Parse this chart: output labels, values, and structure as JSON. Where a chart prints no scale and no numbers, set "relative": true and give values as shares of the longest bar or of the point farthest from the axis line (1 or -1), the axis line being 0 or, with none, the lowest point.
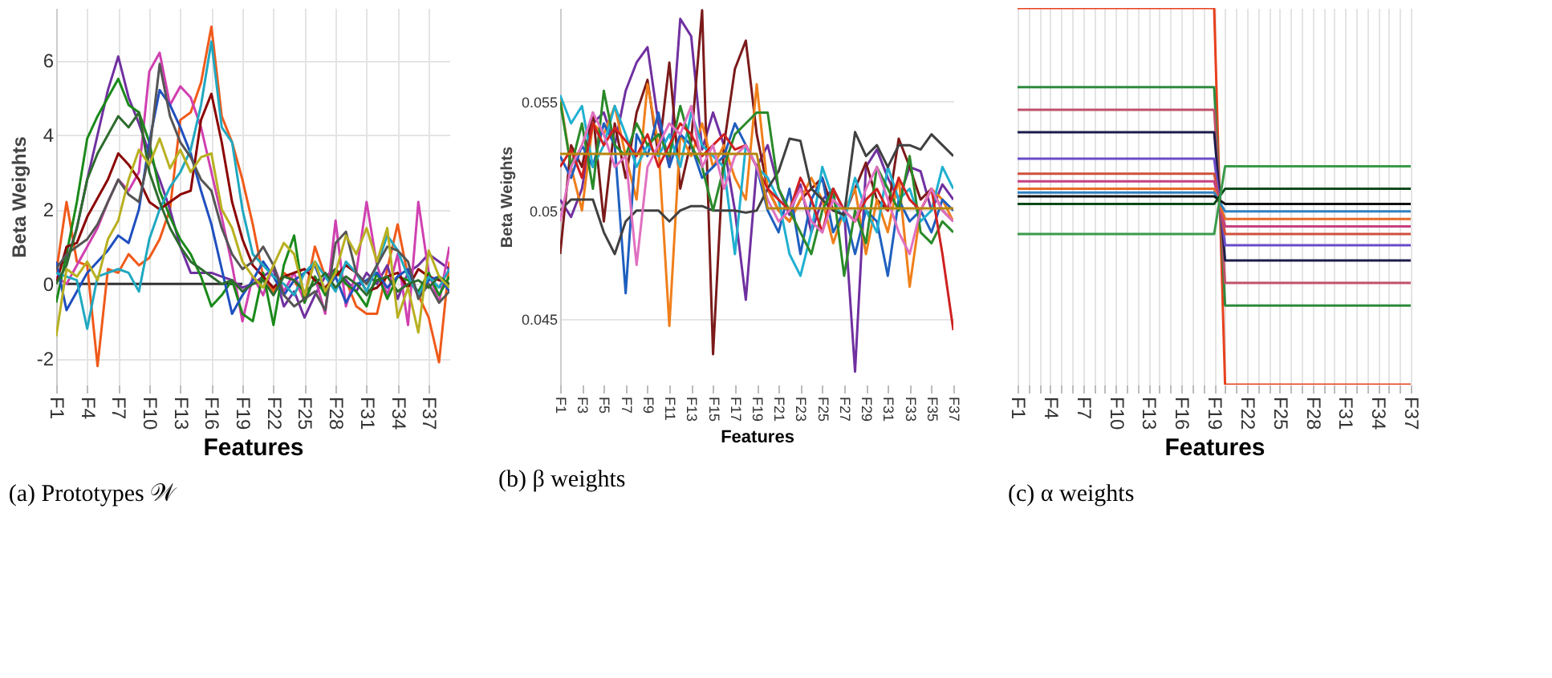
{
  "chart_data": [
    {
      "type": "line",
      "title": "(a) Prototypes 𝒲",
      "xlabel": "Features",
      "ylabel": "Beta Weights",
      "grid": true,
      "categories": [
        "F1",
        null,
        null,
        "F4",
        null,
        null,
        "F7",
        null,
        null,
        "F10",
        null,
        null,
        "F13",
        null,
        null,
        "F16",
        null,
        null,
        "F19",
        null,
        null,
        "F22",
        null,
        null,
        "F25",
        null,
        null,
        "F28",
        null,
        null,
        "F31",
        null,
        null,
        "F34",
        null,
        null,
        "F37",
        null,
        null
      ],
      "ylim": [
        -2.7,
        7.4
      ],
      "yticks": [
        -2,
        0,
        2,
        4,
        6
      ],
      "series": [
        {
          "color": "#333333",
          "values": [
            null,
            0,
            0,
            0,
            0,
            0,
            0,
            0,
            0,
            0,
            0,
            0,
            0,
            0,
            0,
            0,
            0,
            0,
            0,
            null,
            null,
            null,
            null,
            null,
            null,
            null,
            null,
            null,
            null,
            null,
            null,
            null,
            null,
            null,
            null,
            null,
            null,
            null,
            null
          ]
        },
        {
          "color": "#f05a1a",
          "values": [
            0.3,
            2.2,
            0.6,
            0.5,
            -2.2,
            0.4,
            0.3,
            0.8,
            0.5,
            0.7,
            1.2,
            2.0,
            4.4,
            4.6,
            5.4,
            6.9,
            4.5,
            3.8,
            2.8,
            1.6,
            0.2,
            -0.2,
            0.3,
            0.1,
            -0.4,
            1.0,
            0.2,
            0.3,
            0.1,
            -0.6,
            -0.8,
            -0.8,
            0.4,
            1.6,
            0.2,
            -0.3,
            -0.9,
            -2.1,
            0.6
          ]
        },
        {
          "color": "#7030a0",
          "values": [
            0.5,
            0.6,
            1.5,
            2.8,
            4.0,
            5.2,
            6.1,
            5.0,
            4.3,
            3.5,
            2.8,
            2.0,
            1.0,
            0.3,
            0.3,
            0.3,
            0.2,
            0.1,
            -0.1,
            0.0,
            0.2,
            0.4,
            -0.6,
            -0.2,
            -0.9,
            -0.3,
            0.2,
            0.4,
            0.1,
            -0.2,
            0.3,
            0.0,
            0.5,
            -0.4,
            0.3,
            0.5,
            0.8,
            0.6,
            0.4
          ]
        },
        {
          "color": "#d040b0",
          "values": [
            0.2,
            0.0,
            0.5,
            1.0,
            1.5,
            2.2,
            2.8,
            2.5,
            3.0,
            5.7,
            6.2,
            4.8,
            5.3,
            5.0,
            4.2,
            3.0,
            1.8,
            0.5,
            -1.0,
            0.2,
            -0.3,
            0.5,
            -0.2,
            0.3,
            -0.5,
            0.2,
            -0.8,
            1.7,
            -0.6,
            0.3,
            2.2,
            0.5,
            -0.3,
            0.8,
            -1.1,
            2.2,
            0.3,
            -0.5,
            1.0
          ]
        },
        {
          "color": "#1a8a1a",
          "values": [
            -0.5,
            0.8,
            2.2,
            3.9,
            4.5,
            5.0,
            5.5,
            4.8,
            4.6,
            3.8,
            2.5,
            1.8,
            1.2,
            0.8,
            0.2,
            -0.6,
            -0.3,
            0.1,
            -0.8,
            -1.0,
            0.3,
            -1.1,
            0.5,
            1.3,
            -0.5,
            0.2,
            -0.3,
            0.4,
            0.0,
            -0.2,
            -0.6,
            0.3,
            -0.4,
            0.2,
            0.1,
            -0.2,
            0.3,
            -0.3,
            0.2
          ]
        },
        {
          "color": "#8b0000",
          "values": [
            0.0,
            1.0,
            1.1,
            1.8,
            2.3,
            2.8,
            3.5,
            3.2,
            2.8,
            2.2,
            2.0,
            2.2,
            2.4,
            2.5,
            4.4,
            5.1,
            3.8,
            2.2,
            1.2,
            0.5,
            0.2,
            -0.1,
            0.2,
            0.3,
            0.4,
            0.1,
            -0.1,
            0.2,
            0.5,
            0.3,
            -0.2,
            -0.1,
            0.2,
            0.3,
            -0.1,
            0.4,
            0.2,
            0.1,
            0.0
          ]
        },
        {
          "color": "#1f4fbf",
          "values": [
            0.6,
            -0.7,
            -0.2,
            0.3,
            0.6,
            0.9,
            1.3,
            1.1,
            2.0,
            3.8,
            5.2,
            4.8,
            4.2,
            3.5,
            2.5,
            1.6,
            0.4,
            -0.8,
            -0.3,
            0.1,
            0.6,
            0.2,
            -0.3,
            0.1,
            0.3,
            0.5,
            -0.2,
            0.2,
            -0.5,
            0.0,
            0.1,
            0.3,
            -0.1,
            0.2,
            0.4,
            -0.3,
            0.1,
            0.2,
            -0.2
          ]
        },
        {
          "color": "#20a8c0",
          "values": [
            0.3,
            0.2,
            0.1,
            -1.2,
            0.2,
            0.3,
            0.4,
            0.3,
            -0.2,
            1.2,
            2.0,
            2.6,
            3.0,
            3.6,
            4.8,
            6.5,
            4.2,
            3.8,
            2.0,
            0.8,
            0.5,
            0.2,
            0.0,
            -0.3,
            0.3,
            0.6,
            0.2,
            -0.2,
            0.6,
            0.3,
            -0.2,
            0.5,
            1.3,
            0.9,
            0.2,
            -0.3,
            0.2,
            -0.1,
            0.4
          ]
        },
        {
          "color": "#555555",
          "values": [
            0.4,
            0.8,
            1.0,
            1.2,
            1.6,
            2.2,
            2.8,
            2.4,
            2.2,
            3.5,
            5.9,
            4.5,
            3.8,
            3.4,
            2.8,
            2.5,
            1.5,
            0.8,
            0.4,
            0.6,
            1.0,
            0.5,
            -0.3,
            -0.6,
            -0.4,
            -0.2,
            -0.7,
            1.1,
            1.4,
            0.3,
            0.0,
            0.5,
            1.0,
            0.9,
            0.6,
            -0.4,
            0.0,
            -0.5,
            -0.2
          ]
        },
        {
          "color": "#2e6b2e",
          "values": [
            0.0,
            0.5,
            1.5,
            2.8,
            3.5,
            4.0,
            4.5,
            4.2,
            4.6,
            3.0,
            2.2,
            1.5,
            1.0,
            0.6,
            0.4,
            0.2,
            0.0,
            0.1,
            -0.2,
            0.0,
            0.1,
            -0.3,
            0.2,
            0.1,
            -0.2,
            0.0,
            0.3,
            -0.1,
            0.2,
            0.0,
            -0.3,
            0.1,
            0.2,
            -0.2,
            0.0,
            0.1,
            -0.1,
            0.2,
            0.0
          ]
        },
        {
          "color": "#b8b020",
          "values": [
            -1.4,
            0.4,
            0.2,
            0.6,
            0.1,
            1.2,
            1.7,
            2.8,
            3.6,
            3.2,
            3.9,
            3.1,
            3.6,
            3.0,
            3.4,
            3.5,
            2.0,
            1.5,
            0.6,
            0.2,
            -0.1,
            0.5,
            1.1,
            0.8,
            -0.3,
            0.6,
            -0.2,
            0.3,
            1.3,
            0.8,
            1.5,
            0.6,
            1.5,
            -0.9,
            -0.1,
            -1.3,
            0.9,
            0.2,
            -0.1
          ]
        }
      ]
    },
    {
      "type": "line",
      "title": "(b) β weights",
      "xlabel": "Features",
      "ylabel": "Beta Weights",
      "grid": "y",
      "categories": [
        "F1",
        null,
        "F3",
        null,
        "F5",
        null,
        "F7",
        null,
        "F9",
        null,
        "F11",
        null,
        "F13",
        null,
        "F15",
        null,
        "F17",
        null,
        "F19",
        null,
        "F21",
        null,
        "F23",
        null,
        "F25",
        null,
        "F27",
        null,
        "F29",
        null,
        "F31",
        null,
        "F33",
        null,
        "F35",
        null,
        "F37"
      ],
      "ylim": [
        0.042,
        0.0593
      ],
      "yticks": [
        0.045,
        0.05,
        0.055
      ],
      "series": [
        {
          "color": "#7030a0",
          "values": [
            0.0505,
            0.0497,
            0.051,
            0.054,
            0.0545,
            0.053,
            0.0555,
            0.0568,
            0.0575,
            0.054,
            0.052,
            0.0588,
            0.058,
            0.0528,
            0.0545,
            0.053,
            0.05,
            0.0459,
            0.052,
            0.053,
            0.051,
            0.0498,
            0.0512,
            0.049,
            0.0505,
            0.051,
            0.05,
            0.0426,
            0.052,
            0.0528,
            0.0515,
            0.0505,
            0.052,
            0.0518,
            0.05,
            0.0512,
            0.0505
          ]
        },
        {
          "color": "#7b1a1a",
          "values": [
            0.048,
            0.053,
            0.052,
            0.0545,
            0.0495,
            0.054,
            0.0515,
            0.0545,
            0.056,
            0.0525,
            0.0568,
            0.051,
            0.0532,
            0.0592,
            0.0434,
            0.053,
            0.0565,
            0.0578,
            0.0535,
            0.051,
            0.05,
            0.0495,
            0.0505,
            0.051,
            0.0515,
            0.05,
            0.0498,
            0.051,
            0.0522,
            0.0505,
            0.05,
            0.0533,
            0.052,
            0.0505,
            0.051,
            0.05,
            0.0495
          ]
        },
        {
          "color": "#f07f1a",
          "values": [
            0.0552,
            0.052,
            0.05,
            0.054,
            0.0535,
            0.0548,
            0.0525,
            0.0505,
            0.0558,
            0.053,
            0.0447,
            0.0535,
            0.0525,
            0.054,
            0.052,
            0.053,
            0.0515,
            0.0505,
            0.0558,
            0.051,
            0.05,
            0.0495,
            0.0505,
            0.0515,
            0.0505,
            0.0485,
            0.05,
            0.051,
            0.048,
            0.0505,
            0.049,
            0.0515,
            0.0465,
            0.05,
            0.051,
            0.0505,
            0.0495
          ]
        },
        {
          "color": "#1f5fbf",
          "values": [
            0.0525,
            0.0515,
            0.053,
            0.052,
            0.054,
            0.053,
            0.0462,
            0.0535,
            0.0525,
            0.0545,
            0.052,
            0.0535,
            0.053,
            0.0515,
            0.052,
            0.0525,
            0.054,
            0.053,
            0.052,
            0.05,
            0.049,
            0.051,
            0.048,
            0.0505,
            0.0515,
            0.049,
            0.05,
            0.048,
            0.05,
            0.0495,
            0.047,
            0.0505,
            0.0495,
            0.05,
            0.049,
            0.0505,
            0.05
          ]
        },
        {
          "color": "#20b0d0",
          "values": [
            0.0553,
            0.054,
            0.0548,
            0.052,
            0.053,
            0.0548,
            0.0535,
            0.052,
            0.053,
            0.0525,
            0.0535,
            0.052,
            0.0545,
            0.053,
            0.0525,
            0.052,
            0.048,
            0.053,
            0.052,
            0.0515,
            0.0505,
            0.048,
            0.047,
            0.049,
            0.052,
            0.0505,
            0.0495,
            0.0515,
            0.05,
            0.049,
            0.052,
            0.0505,
            0.051,
            0.0495,
            0.05,
            0.052,
            0.051
          ]
        },
        {
          "color": "#404040",
          "values": [
            0.05,
            0.0505,
            0.0505,
            0.0505,
            0.049,
            0.048,
            0.0495,
            0.05,
            0.05,
            0.05,
            0.0495,
            0.05,
            0.0502,
            0.0502,
            0.05,
            0.05,
            0.05,
            0.0499,
            0.05,
            0.051,
            0.0518,
            0.0533,
            0.0532,
            0.051,
            0.0505,
            0.05,
            0.0498,
            0.0536,
            0.0525,
            0.053,
            0.052,
            0.053,
            0.053,
            0.0528,
            0.0535,
            0.053,
            0.0525
          ]
        },
        {
          "color": "#2a8a2a",
          "values": [
            0.055,
            0.052,
            0.054,
            0.051,
            0.0555,
            0.053,
            0.0525,
            0.054,
            0.053,
            0.0535,
            0.0525,
            0.0548,
            0.053,
            0.052,
            0.05,
            0.052,
            0.0535,
            0.054,
            0.0545,
            0.0545,
            0.051,
            0.05,
            0.049,
            0.048,
            0.05,
            0.051,
            0.047,
            0.05,
            0.0485,
            0.052,
            0.051,
            0.05,
            0.0525,
            0.049,
            0.0485,
            0.0495,
            0.049
          ]
        },
        {
          "color": "#d02020",
          "values": [
            0.052,
            0.0528,
            0.0515,
            0.054,
            0.053,
            0.0538,
            0.0532,
            0.0525,
            0.0535,
            0.052,
            0.053,
            0.054,
            0.0535,
            0.0525,
            0.053,
            0.0535,
            0.0528,
            0.053,
            0.052,
            0.051,
            0.0505,
            0.05,
            0.0515,
            0.0505,
            0.049,
            0.051,
            0.05,
            0.0495,
            0.0505,
            0.051,
            0.05,
            0.0515,
            0.0505,
            0.05,
            0.051,
            0.048,
            0.0445
          ]
        },
        {
          "color": "#e070c0",
          "values": [
            0.0495,
            0.052,
            0.053,
            0.0545,
            0.0535,
            0.052,
            0.0525,
            0.0475,
            0.052,
            0.053,
            0.054,
            0.0535,
            0.0548,
            0.052,
            0.053,
            0.051,
            0.0525,
            0.053,
            0.052,
            0.0505,
            0.0495,
            0.05,
            0.051,
            0.0495,
            0.049,
            0.0505,
            0.05,
            0.0495,
            0.051,
            0.052,
            0.0505,
            0.049,
            0.048,
            0.05,
            0.051,
            0.05,
            0.0495
          ]
        },
        {
          "color": "#b8860b",
          "values": [
            0.0526,
            0.0526,
            0.0526,
            0.0526,
            0.0526,
            0.0526,
            0.0526,
            0.0526,
            0.0526,
            0.0526,
            0.0526,
            0.0526,
            0.0526,
            0.0526,
            0.0526,
            0.0526,
            0.0526,
            0.0526,
            0.0526,
            0.0501,
            0.0501,
            0.0501,
            0.0501,
            0.0501,
            0.0501,
            0.0501,
            0.0501,
            0.0501,
            0.0501,
            0.0501,
            0.0501,
            0.0501,
            0.0501,
            0.0501,
            0.0501,
            0.0501,
            0.0501
          ]
        }
      ]
    },
    {
      "type": "line",
      "title": "(c) α weights",
      "xlabel": "Features",
      "grid": "x",
      "relative": true,
      "categories": [
        "F1",
        null,
        null,
        "F4",
        null,
        null,
        "F7",
        null,
        null,
        "F10",
        null,
        null,
        "F13",
        null,
        null,
        "F16",
        null,
        null,
        "F19",
        null,
        null,
        "F22",
        null,
        null,
        "F25",
        null,
        null,
        "F28",
        null,
        null,
        "F31",
        null,
        null,
        "F34",
        null,
        null,
        "F37"
      ],
      "series": [
        {
          "color": "#e8401c",
          "values": [
            1.0,
            1.0,
            1.0,
            1.0,
            1.0,
            1.0,
            1.0,
            1.0,
            1.0,
            1.0,
            1.0,
            1.0,
            1.0,
            1.0,
            1.0,
            1.0,
            1.0,
            1.0,
            1.0,
            0,
            0,
            0,
            0,
            0,
            0,
            0,
            0,
            0,
            0,
            0,
            0,
            0,
            0,
            0,
            0,
            0,
            0
          ]
        },
        {
          "color": "#2e8b3e",
          "values": [
            0.79,
            0.79,
            0.79,
            0.79,
            0.79,
            0.79,
            0.79,
            0.79,
            0.79,
            0.79,
            0.79,
            0.79,
            0.79,
            0.79,
            0.79,
            0.79,
            0.79,
            0.79,
            0.79,
            0.21,
            0.21,
            0.21,
            0.21,
            0.21,
            0.21,
            0.21,
            0.21,
            0.21,
            0.21,
            0.21,
            0.21,
            0.21,
            0.21,
            0.21,
            0.21,
            0.21,
            0.21
          ]
        },
        {
          "color": "#c0506a",
          "values": [
            0.73,
            0.73,
            0.73,
            0.73,
            0.73,
            0.73,
            0.73,
            0.73,
            0.73,
            0.73,
            0.73,
            0.73,
            0.73,
            0.73,
            0.73,
            0.73,
            0.73,
            0.73,
            0.73,
            0.27,
            0.27,
            0.27,
            0.27,
            0.27,
            0.27,
            0.27,
            0.27,
            0.27,
            0.27,
            0.27,
            0.27,
            0.27,
            0.27,
            0.27,
            0.27,
            0.27,
            0.27
          ]
        },
        {
          "color": "#1c1c4a",
          "values": [
            0.67,
            0.67,
            0.67,
            0.67,
            0.67,
            0.67,
            0.67,
            0.67,
            0.67,
            0.67,
            0.67,
            0.67,
            0.67,
            0.67,
            0.67,
            0.67,
            0.67,
            0.67,
            0.67,
            0.33,
            0.33,
            0.33,
            0.33,
            0.33,
            0.33,
            0.33,
            0.33,
            0.33,
            0.33,
            0.33,
            0.33,
            0.33,
            0.33,
            0.33,
            0.33,
            0.33,
            0.33
          ]
        },
        {
          "color": "#6a4cc8",
          "values": [
            0.6,
            0.6,
            0.6,
            0.6,
            0.6,
            0.6,
            0.6,
            0.6,
            0.6,
            0.6,
            0.6,
            0.6,
            0.6,
            0.6,
            0.6,
            0.6,
            0.6,
            0.6,
            0.6,
            0.37,
            0.37,
            0.37,
            0.37,
            0.37,
            0.37,
            0.37,
            0.37,
            0.37,
            0.37,
            0.37,
            0.37,
            0.37,
            0.37,
            0.37,
            0.37,
            0.37,
            0.37
          ]
        },
        {
          "color": "#d0503a",
          "values": [
            0.56,
            0.56,
            0.56,
            0.56,
            0.56,
            0.56,
            0.56,
            0.56,
            0.56,
            0.56,
            0.56,
            0.56,
            0.56,
            0.56,
            0.56,
            0.56,
            0.56,
            0.56,
            0.56,
            0.4,
            0.4,
            0.4,
            0.4,
            0.4,
            0.4,
            0.4,
            0.4,
            0.4,
            0.4,
            0.4,
            0.4,
            0.4,
            0.4,
            0.4,
            0.4,
            0.4,
            0.4
          ]
        },
        {
          "color": "#c84080",
          "values": [
            0.54,
            0.54,
            0.54,
            0.54,
            0.54,
            0.54,
            0.54,
            0.54,
            0.54,
            0.54,
            0.54,
            0.54,
            0.54,
            0.54,
            0.54,
            0.54,
            0.54,
            0.54,
            0.54,
            0.42,
            0.42,
            0.42,
            0.42,
            0.42,
            0.42,
            0.42,
            0.42,
            0.42,
            0.42,
            0.42,
            0.42,
            0.42,
            0.42,
            0.42,
            0.42,
            0.42,
            0.42
          ]
        },
        {
          "color": "#e86a2a",
          "values": [
            0.52,
            0.52,
            0.52,
            0.52,
            0.52,
            0.52,
            0.52,
            0.52,
            0.52,
            0.52,
            0.52,
            0.52,
            0.52,
            0.52,
            0.52,
            0.52,
            0.52,
            0.52,
            0.52,
            0.44,
            0.44,
            0.44,
            0.44,
            0.44,
            0.44,
            0.44,
            0.44,
            0.44,
            0.44,
            0.44,
            0.44,
            0.44,
            0.44,
            0.44,
            0.44,
            0.44,
            0.44
          ]
        },
        {
          "color": "#3080c0",
          "values": [
            0.51,
            0.51,
            0.51,
            0.51,
            0.51,
            0.51,
            0.51,
            0.51,
            0.51,
            0.51,
            0.51,
            0.51,
            0.51,
            0.51,
            0.51,
            0.51,
            0.51,
            0.51,
            0.51,
            0.46,
            0.46,
            0.46,
            0.46,
            0.46,
            0.46,
            0.46,
            0.46,
            0.46,
            0.46,
            0.46,
            0.46,
            0.46,
            0.46,
            0.46,
            0.46,
            0.46,
            0.46
          ]
        },
        {
          "color": "#111111",
          "values": [
            0.5,
            0.5,
            0.5,
            0.5,
            0.5,
            0.5,
            0.5,
            0.5,
            0.5,
            0.5,
            0.5,
            0.5,
            0.5,
            0.5,
            0.5,
            0.5,
            0.5,
            0.5,
            0.5,
            0.48,
            0.48,
            0.48,
            0.48,
            0.48,
            0.48,
            0.48,
            0.48,
            0.48,
            0.48,
            0.48,
            0.48,
            0.48,
            0.48,
            0.48,
            0.48,
            0.48,
            0.48
          ]
        },
        {
          "color": "#0a4a1a",
          "values": [
            0.48,
            0.48,
            0.48,
            0.48,
            0.48,
            0.48,
            0.48,
            0.48,
            0.48,
            0.48,
            0.48,
            0.48,
            0.48,
            0.48,
            0.48,
            0.48,
            0.48,
            0.48,
            0.48,
            0.52,
            0.52,
            0.52,
            0.52,
            0.52,
            0.52,
            0.52,
            0.52,
            0.52,
            0.52,
            0.52,
            0.52,
            0.52,
            0.52,
            0.52,
            0.52,
            0.52,
            0.52
          ]
        },
        {
          "color": "#3a9a4a",
          "values": [
            0.4,
            0.4,
            0.4,
            0.4,
            0.4,
            0.4,
            0.4,
            0.4,
            0.4,
            0.4,
            0.4,
            0.4,
            0.4,
            0.4,
            0.4,
            0.4,
            0.4,
            0.4,
            0.4,
            0.58,
            0.58,
            0.58,
            0.58,
            0.58,
            0.58,
            0.58,
            0.58,
            0.58,
            0.58,
            0.58,
            0.58,
            0.58,
            0.58,
            0.58,
            0.58,
            0.58,
            0.58
          ]
        }
      ]
    }
  ]
}
